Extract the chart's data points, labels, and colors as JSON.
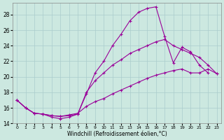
{
  "xlabel": "Windchill (Refroidissement éolien,°C)",
  "bg_color": "#cce8e0",
  "grid_color": "#aacccc",
  "line_color": "#990099",
  "xlim": [
    -0.5,
    23.5
  ],
  "ylim": [
    14,
    29.5
  ],
  "yticks": [
    14,
    16,
    18,
    20,
    22,
    24,
    26,
    28
  ],
  "xticks": [
    0,
    1,
    2,
    3,
    4,
    5,
    6,
    7,
    8,
    9,
    10,
    11,
    12,
    13,
    14,
    15,
    16,
    17,
    18,
    19,
    20,
    21,
    22,
    23
  ],
  "series": [
    {
      "x": [
        0,
        1,
        2,
        3,
        4,
        5,
        6,
        7,
        8,
        9,
        10,
        11,
        12,
        13,
        14,
        15,
        16,
        17,
        18,
        19,
        20,
        21,
        22
      ],
      "y": [
        17.0,
        16.0,
        15.3,
        15.2,
        14.8,
        14.6,
        14.8,
        15.2,
        17.8,
        20.5,
        22.0,
        24.0,
        25.5,
        27.2,
        28.3,
        28.8,
        29.0,
        25.2,
        21.8,
        23.8,
        23.2,
        21.5,
        20.5
      ]
    },
    {
      "x": [
        0,
        1,
        2,
        3,
        4,
        5,
        6,
        7,
        8,
        9,
        10,
        11,
        12,
        13,
        14,
        15,
        16,
        17,
        18,
        19,
        20,
        21,
        22,
        23
      ],
      "y": [
        17.0,
        16.0,
        15.3,
        15.2,
        15.0,
        14.9,
        15.1,
        15.3,
        16.2,
        16.8,
        17.2,
        17.8,
        18.3,
        18.8,
        19.3,
        19.8,
        20.2,
        20.5,
        20.8,
        21.0,
        20.5,
        20.5,
        21.0,
        20.4
      ]
    },
    {
      "x": [
        0,
        1,
        2,
        3,
        4,
        5,
        6,
        7,
        8,
        9,
        10,
        11,
        12,
        13,
        14,
        15,
        16,
        17,
        18,
        19,
        20,
        21,
        22,
        23
      ],
      "y": [
        17.0,
        16.0,
        15.3,
        15.2,
        15.0,
        14.9,
        15.0,
        15.2,
        18.0,
        19.5,
        20.5,
        21.5,
        22.2,
        23.0,
        23.5,
        24.0,
        24.5,
        24.8,
        24.0,
        23.5,
        23.0,
        22.5,
        21.5,
        20.4
      ]
    }
  ]
}
